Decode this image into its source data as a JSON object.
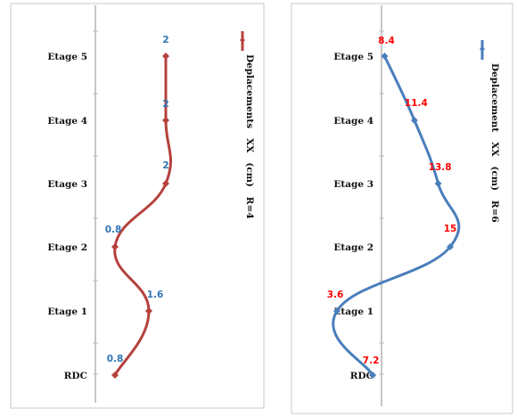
{
  "chart_data": [
    {
      "type": "line",
      "categories": [
        "RDC",
        "Etage 1",
        "Etage 2",
        "Etage 3",
        "Etage 4",
        "Etage 5"
      ],
      "values": [
        0.8,
        1.6,
        0.8,
        2,
        2,
        2
      ],
      "series": [
        {
          "name": "Deplacements   XX   (cm)   R=4",
          "values": [
            0.8,
            1.6,
            0.8,
            2,
            2,
            2
          ]
        }
      ],
      "data_labels": [
        "0.8",
        "1.6",
        "0.8",
        "2",
        "2",
        "2"
      ],
      "smoothed": true,
      "orientation": "vertical-categories",
      "line_color": "#b5413c",
      "label_color": "#2e75b6",
      "marker": "diamond",
      "legend_position": "right-vertical"
    },
    {
      "type": "line",
      "categories": [
        "RDC",
        "Etage 1",
        "Etage 2",
        "Etage 3",
        "Etage 4",
        "Etage 5"
      ],
      "values": [
        7.2,
        3.6,
        15,
        13.8,
        11.4,
        8.4
      ],
      "series": [
        {
          "name": "Deplacement   XX   (cm)   R=6",
          "values": [
            7.2,
            3.6,
            15,
            13.8,
            11.4,
            8.4
          ]
        }
      ],
      "data_labels": [
        "7.2",
        "3.6",
        "15",
        "13.8",
        "11.4",
        "8.4"
      ],
      "smoothed": true,
      "orientation": "vertical-categories",
      "line_color": "#4a7ebb",
      "label_color": "#ff0000",
      "marker": "diamond",
      "legend_position": "right-vertical"
    }
  ]
}
